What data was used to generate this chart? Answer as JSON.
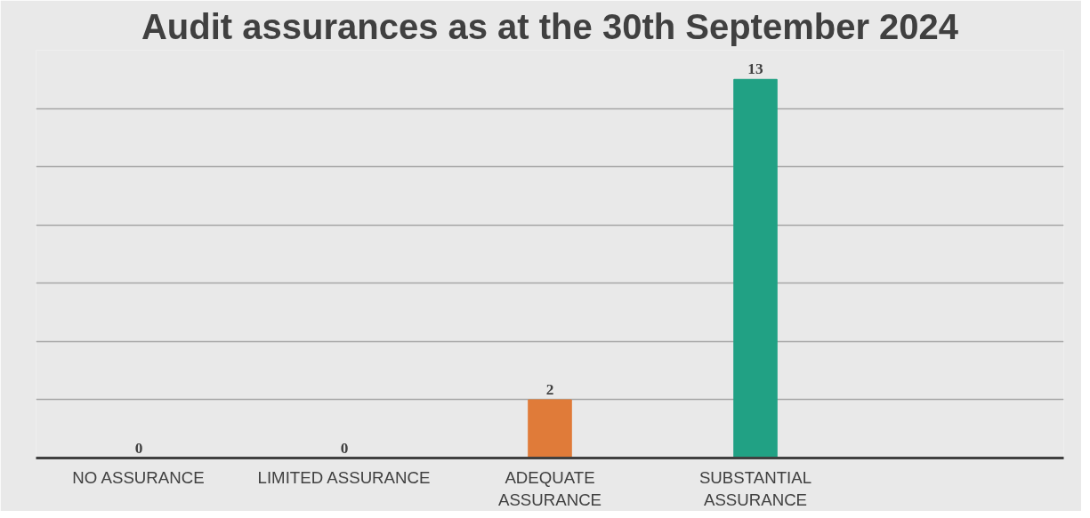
{
  "chart_data": {
    "type": "bar",
    "title": "Audit assurances as at the 30th September 2024",
    "categories": [
      "NO ASSURANCE",
      "LIMITED ASSURANCE",
      "ADEQUATE ASSURANCE",
      "SUBSTANTIAL ASSURANCE",
      null
    ],
    "values": [
      0,
      0,
      2,
      13,
      null
    ],
    "colors": [
      "#4472c4",
      "#e07b39",
      "#e07b39",
      "#21a184",
      "#21a184"
    ],
    "ylim": [
      0,
      14
    ],
    "yticks": [
      {
        "value": 0,
        "label": null
      },
      {
        "value": 2,
        "label": null
      },
      {
        "value": 4,
        "label": null
      },
      {
        "value": 6,
        "label": null
      },
      {
        "value": 8,
        "label": null
      },
      {
        "value": 10,
        "label": null
      },
      {
        "value": 12,
        "label": null
      },
      {
        "value": 14,
        "label": null
      }
    ],
    "tick_labels": "x",
    "grid": "y",
    "data_labels": true
  }
}
